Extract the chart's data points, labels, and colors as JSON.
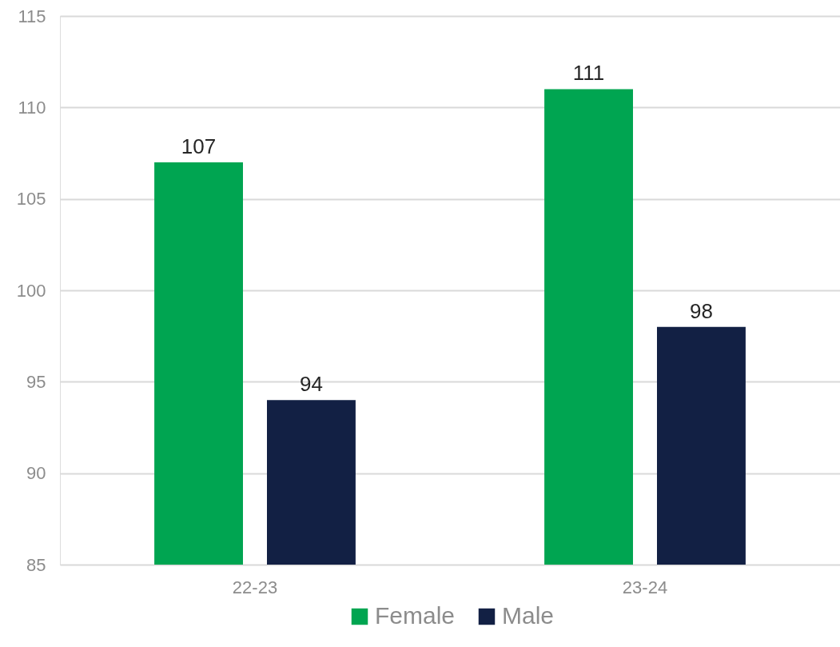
{
  "chart_data": {
    "type": "bar",
    "categories": [
      "22-23",
      "23-24"
    ],
    "series": [
      {
        "name": "Female",
        "color": "#00a551",
        "values": [
          107,
          111
        ]
      },
      {
        "name": "Male",
        "color": "#122044",
        "values": [
          94,
          98
        ]
      }
    ],
    "ylim": [
      85,
      115
    ],
    "yticks": [
      85,
      90,
      95,
      100,
      105,
      110,
      115
    ],
    "grid": "y",
    "legend": "bottom",
    "data_labels": true
  }
}
